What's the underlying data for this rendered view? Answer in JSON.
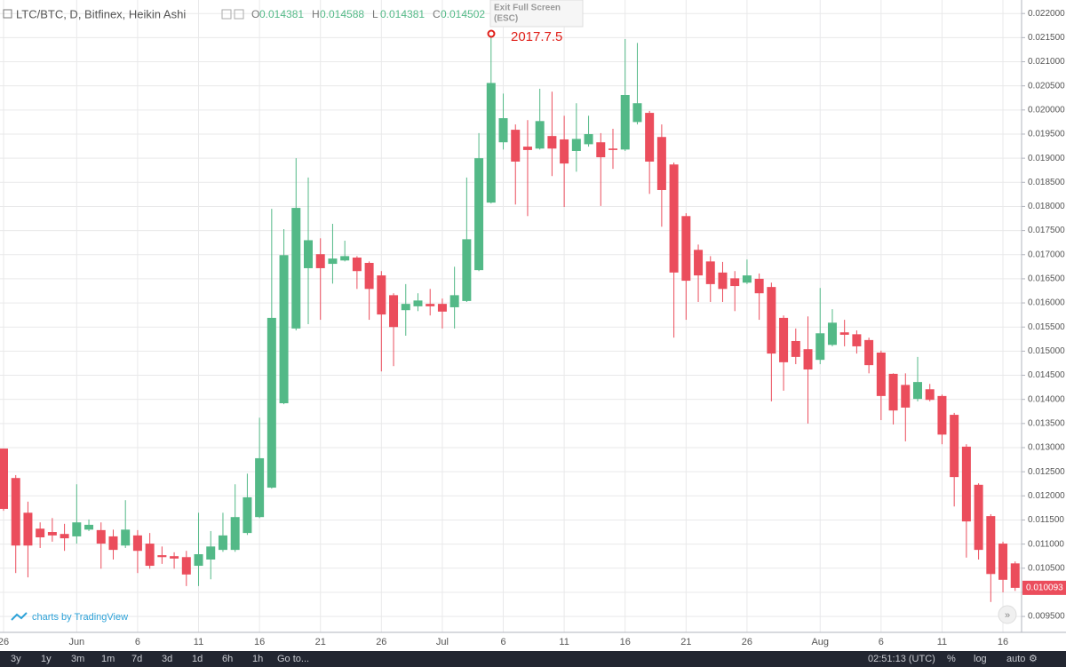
{
  "header": {
    "symbol": "LTC/BTC, D, Bitfinex, Heikin Ashi",
    "ohlc": [
      {
        "label": "O",
        "value": "0.014381"
      },
      {
        "label": "H",
        "value": "0.014588"
      },
      {
        "label": "L",
        "value": "0.014381"
      },
      {
        "label": "C",
        "value": "0.014502"
      }
    ],
    "tooltip": {
      "title": "Exit Full Screen",
      "hint": "(ESC)"
    }
  },
  "chart_data": {
    "type": "candlestick",
    "annotation": "2017.7.5",
    "watermark": "charts by TradingView",
    "up_color": "#53b987",
    "down_color": "#eb4d5c",
    "grid": true,
    "categories": [
      "26",
      null,
      null,
      null,
      null,
      null,
      "Jun",
      null,
      null,
      null,
      null,
      "6",
      null,
      null,
      null,
      null,
      "11",
      null,
      null,
      null,
      null,
      "16",
      null,
      null,
      null,
      null,
      "21",
      null,
      null,
      null,
      null,
      "26",
      null,
      null,
      null,
      null,
      "Jul",
      null,
      null,
      null,
      null,
      "6",
      null,
      null,
      null,
      null,
      "11",
      null,
      null,
      null,
      null,
      "16",
      null,
      null,
      null,
      null,
      "21",
      null,
      null,
      null,
      null,
      "26",
      null,
      null,
      null,
      null,
      null,
      "Aug",
      null,
      null,
      null,
      null,
      "6",
      null,
      null,
      null,
      null,
      "11",
      null,
      null,
      null,
      null,
      "16",
      null
    ],
    "open": [
      0.01298,
      0.01237,
      0.01165,
      0.01132,
      0.01125,
      0.01121,
      0.01116,
      0.0113,
      0.01129,
      0.01116,
      0.01097,
      0.01118,
      0.01101,
      0.01077,
      0.01075,
      0.01073,
      0.01055,
      0.01068,
      0.01088,
      0.01088,
      0.01123,
      0.01156,
      0.01217,
      0.01392,
      0.01547,
      0.01672,
      0.01701,
      0.01681,
      0.01688,
      0.01694,
      0.01683,
      0.01657,
      0.01616,
      0.01585,
      0.01593,
      0.01598,
      0.01598,
      0.01591,
      0.01604,
      0.01668,
      0.01808,
      0.01933,
      0.01959,
      0.01924,
      0.0192,
      0.01946,
      0.01939,
      0.01915,
      0.01929,
      0.01933,
      0.0192,
      0.01918,
      0.01975,
      0.01994,
      0.01944,
      0.01887,
      0.0178,
      0.0171,
      0.01686,
      0.01663,
      0.01651,
      0.01642,
      0.0165,
      0.01633,
      0.01569,
      0.01521,
      0.01504,
      0.01482,
      0.01513,
      0.01539,
      0.01535,
      0.01523,
      0.01497,
      0.01453,
      0.0143,
      0.01401,
      0.01421,
      0.01407,
      0.01368,
      0.01302,
      0.01223,
      0.01158,
      0.01101,
      0.0106
    ],
    "high": [
      0.01298,
      0.01243,
      0.01188,
      0.01145,
      0.01154,
      0.01142,
      0.01224,
      0.01151,
      0.01145,
      0.0113,
      0.01191,
      0.01129,
      0.01123,
      0.01095,
      0.01083,
      0.01086,
      0.01165,
      0.01127,
      0.01165,
      0.01224,
      0.01246,
      0.01362,
      0.01795,
      0.01753,
      0.019,
      0.0186,
      0.01734,
      0.01764,
      0.01729,
      0.01697,
      0.01686,
      0.01666,
      0.0162,
      0.01639,
      0.0162,
      0.01629,
      0.01609,
      0.01675,
      0.0186,
      0.01952,
      0.02154,
      0.02034,
      0.0197,
      0.01979,
      0.02044,
      0.02038,
      0.01988,
      0.02014,
      0.01988,
      0.01952,
      0.01961,
      0.02147,
      0.02139,
      0.01998,
      0.0197,
      0.01891,
      0.01786,
      0.01721,
      0.01697,
      0.01685,
      0.01666,
      0.0169,
      0.01661,
      0.01642,
      0.01574,
      0.01547,
      0.01572,
      0.01631,
      0.01587,
      0.01565,
      0.01543,
      0.01528,
      0.01501,
      0.01454,
      0.01454,
      0.01488,
      0.01432,
      0.0141,
      0.01372,
      0.01307,
      0.01226,
      0.01162,
      0.01105,
      0.01064
    ],
    "low": [
      0.01169,
      0.0104,
      0.01031,
      0.01092,
      0.01105,
      0.01086,
      0.01101,
      0.01127,
      0.01049,
      0.01068,
      0.01092,
      0.0104,
      0.01049,
      0.01059,
      0.01049,
      0.01013,
      0.01013,
      0.01027,
      0.01084,
      0.01084,
      0.01119,
      0.01154,
      0.01215,
      0.0139,
      0.01543,
      0.01556,
      0.01565,
      0.0164,
      0.01686,
      0.01629,
      0.01565,
      0.01458,
      0.01469,
      0.01532,
      0.01583,
      0.01574,
      0.01547,
      0.01547,
      0.01602,
      0.01666,
      0.01806,
      0.01918,
      0.01804,
      0.0178,
      0.01918,
      0.01863,
      0.01799,
      0.01872,
      0.01924,
      0.01801,
      0.01878,
      0.01915,
      0.0197,
      0.01826,
      0.01758,
      0.01528,
      0.01565,
      0.01602,
      0.01602,
      0.01602,
      0.01583,
      0.01639,
      0.01565,
      0.01396,
      0.01418,
      0.01473,
      0.0135,
      0.01473,
      0.0151,
      0.0151,
      0.01495,
      0.01454,
      0.01357,
      0.01348,
      0.01313,
      0.01396,
      0.01396,
      0.01307,
      0.01178,
      0.01072,
      0.01068,
      0.0098,
      0.01,
      0.01003
    ],
    "close": [
      0.01173,
      0.01097,
      0.01097,
      0.01114,
      0.01118,
      0.01112,
      0.01145,
      0.0114,
      0.01101,
      0.01088,
      0.0113,
      0.01086,
      0.01055,
      0.01073,
      0.0107,
      0.01037,
      0.01079,
      0.01095,
      0.01118,
      0.01156,
      0.01197,
      0.01278,
      0.01569,
      0.01699,
      0.01797,
      0.0173,
      0.01672,
      0.01692,
      0.01697,
      0.01666,
      0.01629,
      0.01576,
      0.0155,
      0.01598,
      0.01605,
      0.01593,
      0.01582,
      0.01616,
      0.01732,
      0.019,
      0.02056,
      0.01983,
      0.01893,
      0.01917,
      0.01977,
      0.0192,
      0.01889,
      0.0194,
      0.0195,
      0.01902,
      0.01917,
      0.02031,
      0.02014,
      0.01893,
      0.01834,
      0.01663,
      0.01646,
      0.01657,
      0.01639,
      0.01629,
      0.01635,
      0.01657,
      0.0162,
      0.01495,
      0.01477,
      0.01488,
      0.01462,
      0.01537,
      0.01559,
      0.01534,
      0.0151,
      0.01471,
      0.01407,
      0.01377,
      0.01383,
      0.01436,
      0.01399,
      0.01327,
      0.01239,
      0.01147,
      0.01088,
      0.01038,
      0.01026,
      0.010093
    ],
    "ylim": [
      0.00917,
      0.02228
    ],
    "yticks": [
      {
        "value": 0.0095,
        "label": "0.009500"
      },
      {
        "value": 0.01,
        "label": "0.010000"
      },
      {
        "value": 0.0105,
        "label": "0.010500"
      },
      {
        "value": 0.011,
        "label": "0.011000"
      },
      {
        "value": 0.0115,
        "label": "0.011500"
      },
      {
        "value": 0.012,
        "label": "0.012000"
      },
      {
        "value": 0.0125,
        "label": "0.012500"
      },
      {
        "value": 0.013,
        "label": "0.013000"
      },
      {
        "value": 0.0135,
        "label": "0.013500"
      },
      {
        "value": 0.014,
        "label": "0.014000"
      },
      {
        "value": 0.0145,
        "label": "0.014500"
      },
      {
        "value": 0.015,
        "label": "0.015000"
      },
      {
        "value": 0.0155,
        "label": "0.015500"
      },
      {
        "value": 0.016,
        "label": "0.016000"
      },
      {
        "value": 0.0165,
        "label": "0.016500"
      },
      {
        "value": 0.017,
        "label": "0.017000"
      },
      {
        "value": 0.0175,
        "label": "0.017500"
      },
      {
        "value": 0.018,
        "label": "0.018000"
      },
      {
        "value": 0.0185,
        "label": "0.018500"
      },
      {
        "value": 0.019,
        "label": "0.019000"
      },
      {
        "value": 0.0195,
        "label": "0.019500"
      },
      {
        "value": 0.02,
        "label": "0.020000"
      },
      {
        "value": 0.0205,
        "label": "0.020500"
      },
      {
        "value": 0.021,
        "label": "0.021000"
      },
      {
        "value": 0.0215,
        "label": "0.021500"
      },
      {
        "value": 0.022,
        "label": "0.022000"
      }
    ]
  },
  "toolbar": {
    "ranges": [
      "3y",
      "1y",
      "3m",
      "1m",
      "7d",
      "3d",
      "1d",
      "6h",
      "1h",
      "Go to..."
    ],
    "time": "02:51:13 (UTC)",
    "options": [
      "%",
      "log",
      "auto"
    ]
  }
}
